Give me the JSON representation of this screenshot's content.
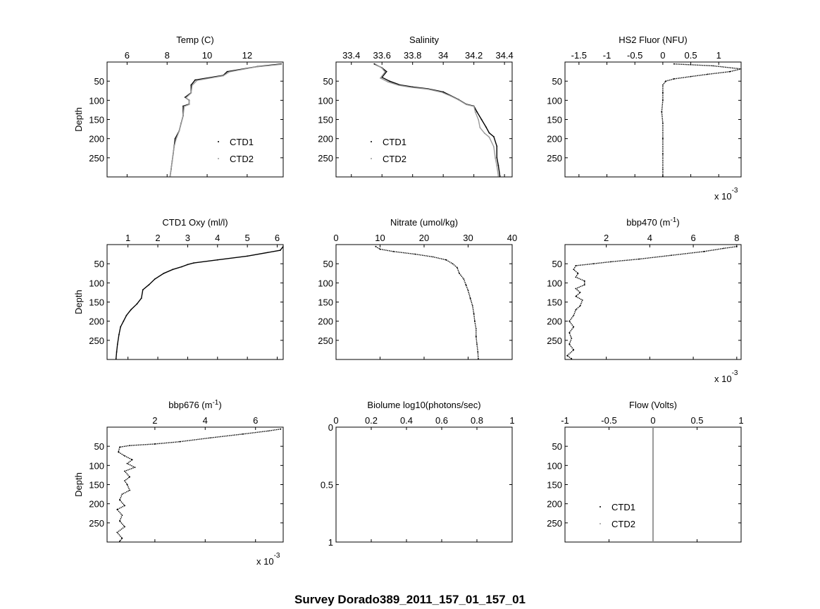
{
  "figure_title": "Survey Dorado389_2011_157_01_157_01",
  "legend": {
    "series": [
      "CTD1",
      "CTD2"
    ]
  },
  "colors": {
    "ctd1": "#000000",
    "ctd2": "#9a9a9a"
  },
  "chart_data": [
    {
      "type": "scatter",
      "title": "Temp (C)",
      "ylabel": "Depth",
      "xlim": [
        5,
        13.8
      ],
      "xticks": [
        6,
        8,
        10,
        12
      ],
      "ylim": [
        0,
        300
      ],
      "yticks": [
        50,
        100,
        150,
        200,
        250
      ],
      "y_reversed": true,
      "x_axis_top": true,
      "grid": false,
      "legend_position": "bottom-right",
      "multiplier": "",
      "series": [
        {
          "name": "CTD1",
          "color": "#000000",
          "points": [
            [
              13.7,
              5
            ],
            [
              12.5,
              12
            ],
            [
              11.0,
              25
            ],
            [
              10.8,
              35
            ],
            [
              9.4,
              47
            ],
            [
              9.2,
              60
            ],
            [
              9.2,
              80
            ],
            [
              8.9,
              92
            ],
            [
              9.1,
              100
            ],
            [
              9.1,
              110
            ],
            [
              8.8,
              115
            ],
            [
              8.8,
              140
            ],
            [
              8.7,
              160
            ],
            [
              8.6,
              180
            ],
            [
              8.4,
              200
            ],
            [
              8.35,
              220
            ],
            [
              8.3,
              240
            ],
            [
              8.25,
              260
            ],
            [
              8.2,
              280
            ],
            [
              8.15,
              298
            ]
          ]
        },
        {
          "name": "CTD2",
          "color": "#9a9a9a",
          "points": [
            [
              13.7,
              6
            ],
            [
              12.4,
              13
            ],
            [
              11.1,
              26
            ],
            [
              10.8,
              36
            ],
            [
              9.5,
              48
            ],
            [
              9.25,
              61
            ],
            [
              9.2,
              81
            ],
            [
              8.95,
              93
            ],
            [
              9.1,
              101
            ],
            [
              9.1,
              111
            ],
            [
              8.85,
              116
            ],
            [
              8.8,
              141
            ],
            [
              8.7,
              161
            ],
            [
              8.6,
              181
            ],
            [
              8.45,
              201
            ],
            [
              8.35,
              221
            ],
            [
              8.3,
              241
            ],
            [
              8.25,
              261
            ],
            [
              8.2,
              281
            ],
            [
              8.15,
              298
            ]
          ]
        }
      ]
    },
    {
      "type": "scatter",
      "title": "Salinity",
      "ylabel": "",
      "xlim": [
        33.3,
        34.45
      ],
      "xticks": [
        33.4,
        33.6,
        33.8,
        34,
        34.2,
        34.4
      ],
      "ylim": [
        0,
        300
      ],
      "yticks": [
        50,
        100,
        150,
        200,
        250
      ],
      "y_reversed": true,
      "x_axis_top": true,
      "grid": false,
      "legend_position": "bottom-left",
      "multiplier": "",
      "series": [
        {
          "name": "CTD1",
          "color": "#000000",
          "points": [
            [
              33.55,
              5
            ],
            [
              33.6,
              15
            ],
            [
              33.63,
              25
            ],
            [
              33.6,
              40
            ],
            [
              33.65,
              50
            ],
            [
              33.72,
              60
            ],
            [
              33.8,
              65
            ],
            [
              33.9,
              70
            ],
            [
              34.0,
              78
            ],
            [
              34.05,
              88
            ],
            [
              34.1,
              98
            ],
            [
              34.15,
              110
            ],
            [
              34.2,
              115
            ],
            [
              34.22,
              130
            ],
            [
              34.25,
              150
            ],
            [
              34.28,
              170
            ],
            [
              34.3,
              185
            ],
            [
              34.33,
              195
            ],
            [
              34.35,
              220
            ],
            [
              34.35,
              250
            ],
            [
              34.36,
              270
            ],
            [
              34.37,
              298
            ]
          ]
        },
        {
          "name": "CTD2",
          "color": "#9a9a9a",
          "points": [
            [
              33.56,
              6
            ],
            [
              33.6,
              16
            ],
            [
              33.62,
              26
            ],
            [
              33.59,
              42
            ],
            [
              33.64,
              52
            ],
            [
              33.71,
              61
            ],
            [
              33.79,
              66
            ],
            [
              33.9,
              71
            ],
            [
              33.99,
              79
            ],
            [
              34.05,
              89
            ],
            [
              34.1,
              99
            ],
            [
              34.15,
              111
            ],
            [
              34.2,
              116
            ],
            [
              34.21,
              131
            ],
            [
              34.23,
              151
            ],
            [
              34.24,
              171
            ],
            [
              34.27,
              186
            ],
            [
              34.3,
              196
            ],
            [
              34.33,
              221
            ],
            [
              34.34,
              251
            ],
            [
              34.35,
              271
            ],
            [
              34.36,
              298
            ]
          ]
        }
      ]
    },
    {
      "type": "scatter",
      "title": "HS2 Fluor (NFU)",
      "ylabel": "",
      "xlim": [
        -1.75,
        1.4
      ],
      "xticks": [
        -1.5,
        -1,
        -0.5,
        0,
        0.5,
        1
      ],
      "ylim": [
        0,
        300
      ],
      "yticks": [
        50,
        100,
        150,
        200,
        250
      ],
      "y_reversed": true,
      "x_axis_top": true,
      "grid": false,
      "legend_position": "",
      "multiplier": "x 10-3",
      "series": [
        {
          "name": "CTD1",
          "color": "#000000",
          "points": [
            [
              0.2,
              5
            ],
            [
              0.9,
              10
            ],
            [
              1.4,
              18
            ],
            [
              1.2,
              25
            ],
            [
              0.8,
              32
            ],
            [
              0.5,
              38
            ],
            [
              0.2,
              44
            ],
            [
              0.05,
              50
            ],
            [
              0.0,
              60
            ],
            [
              0.0,
              80
            ],
            [
              0.0,
              100
            ],
            [
              -0.02,
              130
            ],
            [
              0.0,
              160
            ],
            [
              0.0,
              200
            ],
            [
              0.0,
              240
            ],
            [
              0.0,
              280
            ],
            [
              0.0,
              298
            ]
          ]
        }
      ]
    },
    {
      "type": "scatter",
      "title": "CTD1 Oxy (ml/l)",
      "ylabel": "Depth",
      "xlim": [
        0.3,
        6.2
      ],
      "xticks": [
        1,
        2,
        3,
        4,
        5,
        6
      ],
      "ylim": [
        0,
        300
      ],
      "yticks": [
        50,
        100,
        150,
        200,
        250
      ],
      "y_reversed": true,
      "x_axis_top": true,
      "grid": false,
      "legend_position": "",
      "multiplier": "",
      "series": [
        {
          "name": "CTD1",
          "color": "#000000",
          "points": [
            [
              6.2,
              5
            ],
            [
              6.1,
              15
            ],
            [
              5.0,
              30
            ],
            [
              4.0,
              40
            ],
            [
              3.2,
              48
            ],
            [
              3.0,
              52
            ],
            [
              2.8,
              58
            ],
            [
              2.5,
              65
            ],
            [
              2.2,
              75
            ],
            [
              1.9,
              90
            ],
            [
              1.7,
              105
            ],
            [
              1.5,
              118
            ],
            [
              1.45,
              140
            ],
            [
              1.3,
              155
            ],
            [
              1.1,
              170
            ],
            [
              0.95,
              185
            ],
            [
              0.85,
              200
            ],
            [
              0.75,
              215
            ],
            [
              0.7,
              235
            ],
            [
              0.65,
              260
            ],
            [
              0.62,
              280
            ],
            [
              0.6,
              298
            ]
          ]
        }
      ]
    },
    {
      "type": "scatter",
      "title": "Nitrate (umol/kg)",
      "ylabel": "",
      "xlim": [
        0,
        40
      ],
      "xticks": [
        0,
        10,
        20,
        30,
        40
      ],
      "ylim": [
        0,
        300
      ],
      "yticks": [
        50,
        100,
        150,
        200,
        250
      ],
      "y_reversed": true,
      "x_axis_top": true,
      "grid": false,
      "legend_position": "",
      "multiplier": "",
      "series": [
        {
          "name": "CTD1",
          "color": "#000000",
          "points": [
            [
              9.0,
              5
            ],
            [
              10,
              12
            ],
            [
              13,
              18
            ],
            [
              18,
              25
            ],
            [
              22,
              32
            ],
            [
              25,
              40
            ],
            [
              26.5,
              50
            ],
            [
              27.5,
              60
            ],
            [
              28,
              75
            ],
            [
              29,
              90
            ],
            [
              29.5,
              105
            ],
            [
              30,
              120
            ],
            [
              30.5,
              140
            ],
            [
              31,
              160
            ],
            [
              31.3,
              180
            ],
            [
              31.5,
              200
            ],
            [
              31.8,
              220
            ],
            [
              31.8,
              240
            ],
            [
              32,
              260
            ],
            [
              32.2,
              280
            ],
            [
              32.3,
              298
            ]
          ]
        }
      ]
    },
    {
      "type": "scatter",
      "title": "bbp470 (m",
      "title_sup": "-1",
      "title_tail": ")",
      "ylabel": "",
      "xlim": [
        0.1,
        8.2
      ],
      "xticks": [
        2,
        4,
        6,
        8
      ],
      "ylim": [
        0,
        300
      ],
      "yticks": [
        50,
        100,
        150,
        200,
        250
      ],
      "y_reversed": true,
      "x_axis_top": true,
      "grid": false,
      "legend_position": "",
      "multiplier": "x 10-3",
      "series": [
        {
          "name": "CTD1",
          "color": "#000000",
          "points": [
            [
              8.0,
              5
            ],
            [
              7.4,
              10
            ],
            [
              6.5,
              18
            ],
            [
              5.0,
              28
            ],
            [
              3.5,
              38
            ],
            [
              2.2,
              45
            ],
            [
              1.4,
              50
            ],
            [
              0.6,
              55
            ],
            [
              0.5,
              65
            ],
            [
              0.7,
              75
            ],
            [
              0.6,
              85
            ],
            [
              1.0,
              95
            ],
            [
              1.0,
              105
            ],
            [
              0.6,
              115
            ],
            [
              0.8,
              125
            ],
            [
              0.6,
              135
            ],
            [
              0.9,
              145
            ],
            [
              0.8,
              160
            ],
            [
              0.6,
              170
            ],
            [
              0.5,
              185
            ],
            [
              0.3,
              200
            ],
            [
              0.5,
              215
            ],
            [
              0.3,
              230
            ],
            [
              0.4,
              245
            ],
            [
              0.3,
              260
            ],
            [
              0.5,
              275
            ],
            [
              0.2,
              290
            ],
            [
              0.4,
              298
            ]
          ]
        }
      ]
    },
    {
      "type": "scatter",
      "title": "bbp676 (m",
      "title_sup": "-1",
      "title_tail": ")",
      "ylabel": "Depth",
      "xlim": [
        0.1,
        7.1
      ],
      "xticks": [
        2,
        4,
        6
      ],
      "ylim": [
        0,
        300
      ],
      "yticks": [
        50,
        100,
        150,
        200,
        250
      ],
      "y_reversed": true,
      "x_axis_top": true,
      "grid": false,
      "legend_position": "",
      "multiplier": "x 10-3",
      "series": [
        {
          "name": "CTD1",
          "color": "#000000",
          "points": [
            [
              7.0,
              5
            ],
            [
              6.5,
              10
            ],
            [
              5.5,
              18
            ],
            [
              4.2,
              28
            ],
            [
              3.0,
              38
            ],
            [
              2.0,
              44
            ],
            [
              1.0,
              48
            ],
            [
              0.6,
              52
            ],
            [
              0.55,
              65
            ],
            [
              0.8,
              75
            ],
            [
              1.1,
              85
            ],
            [
              0.9,
              95
            ],
            [
              1.2,
              105
            ],
            [
              0.8,
              115
            ],
            [
              1.0,
              130
            ],
            [
              0.8,
              140
            ],
            [
              0.9,
              150
            ],
            [
              1.0,
              165
            ],
            [
              0.7,
              175
            ],
            [
              0.6,
              190
            ],
            [
              0.8,
              205
            ],
            [
              0.5,
              215
            ],
            [
              0.7,
              230
            ],
            [
              0.6,
              245
            ],
            [
              0.8,
              260
            ],
            [
              0.5,
              275
            ],
            [
              0.7,
              290
            ],
            [
              0.6,
              298
            ]
          ]
        }
      ]
    },
    {
      "type": "scatter",
      "title": "Biolume log10(photons/sec)",
      "ylabel": "",
      "xlim": [
        0,
        1
      ],
      "xticks": [
        0,
        0.2,
        0.4,
        0.6,
        0.8,
        1
      ],
      "ylim": [
        0,
        1
      ],
      "yticks": [
        0,
        0.5,
        1
      ],
      "y_reversed": true,
      "x_axis_top": true,
      "grid": false,
      "legend_position": "",
      "multiplier": "",
      "series": []
    },
    {
      "type": "scatter",
      "title": "Flow (Volts)",
      "ylabel": "",
      "xlim": [
        -1,
        1
      ],
      "xticks": [
        -1,
        -0.5,
        0,
        0.5,
        1
      ],
      "ylim": [
        0,
        300
      ],
      "yticks": [
        50,
        100,
        150,
        200,
        250
      ],
      "y_reversed": true,
      "x_axis_top": true,
      "grid": false,
      "legend_position": "bottom-left",
      "multiplier": "",
      "series": [
        {
          "name": "CTD1",
          "color": "#000000",
          "points": [
            [
              0,
              0
            ],
            [
              0,
              300
            ]
          ]
        },
        {
          "name": "CTD2",
          "color": "#9a9a9a",
          "points": [
            [
              0,
              0
            ],
            [
              0,
              300
            ]
          ]
        }
      ]
    }
  ]
}
